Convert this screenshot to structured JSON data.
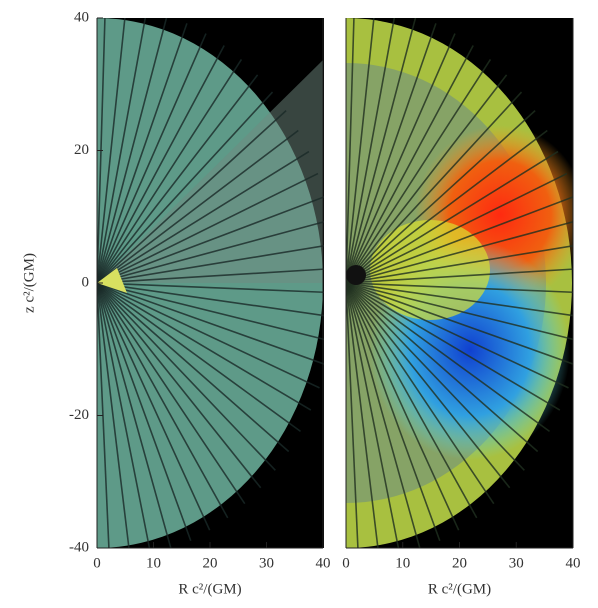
{
  "chart_data": [
    {
      "type": "image",
      "xlabel": "R c²/(GM)",
      "ylabel": "z c²/(GM)",
      "xlim": [
        0,
        40
      ],
      "xticks": [
        0,
        10,
        20,
        30,
        40
      ],
      "ylim": [
        -40,
        40
      ],
      "yticks": [
        -40,
        -20,
        0,
        20,
        40
      ]
    },
    {
      "type": "image",
      "xlabel": "R c²/(GM)",
      "xlim": [
        0,
        40
      ],
      "xticks": [
        0,
        10,
        20,
        30,
        40
      ]
    }
  ]
}
